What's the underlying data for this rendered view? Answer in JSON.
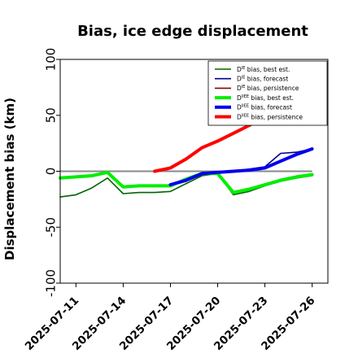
{
  "chart_data": {
    "type": "line",
    "title": "Bias, ice edge displacement",
    "xlabel": "",
    "ylabel": "Displacement bias (km)",
    "ylim": [
      -100,
      100
    ],
    "xlim": [
      "2025-07-10",
      "2025-07-27"
    ],
    "yticks": [
      -100,
      -50,
      0,
      50,
      100
    ],
    "yticklabels": [
      "-100",
      "-50",
      "0",
      "50",
      "100"
    ],
    "xticks": [
      "2025-07-11",
      "2025-07-14",
      "2025-07-17",
      "2025-07-20",
      "2025-07-23",
      "2025-07-26"
    ],
    "highlight_tick": "2025-07-17",
    "highlight_color": "#228b22",
    "zero_line": true,
    "grid": false,
    "legend_placement": "top-right",
    "series": [
      {
        "name": "D^IE bias, best est.",
        "legend_main": "D",
        "legend_sup": "IE",
        "legend_rest": " bias, best est.",
        "color": "#006400",
        "bold": false,
        "points": [
          [
            "2025-07-10",
            -23
          ],
          [
            "2025-07-11",
            -21
          ],
          [
            "2025-07-12",
            -15
          ],
          [
            "2025-07-13",
            -6
          ],
          [
            "2025-07-14",
            -20
          ],
          [
            "2025-07-15",
            -19
          ],
          [
            "2025-07-16",
            -19
          ],
          [
            "2025-07-17",
            -18
          ],
          [
            "2025-07-18",
            -11
          ],
          [
            "2025-07-19",
            -4
          ],
          [
            "2025-07-20",
            -2
          ],
          [
            "2025-07-21",
            -21
          ],
          [
            "2025-07-22",
            -18
          ],
          [
            "2025-07-23",
            -13
          ],
          [
            "2025-07-24",
            -9
          ],
          [
            "2025-07-25",
            -6
          ],
          [
            "2025-07-26",
            -4
          ]
        ]
      },
      {
        "name": "D^IE bias, forecast",
        "legend_main": "D",
        "legend_sup": "IE",
        "legend_rest": " bias, forecast",
        "color": "#00008b",
        "bold": false,
        "points": [
          [
            "2025-07-17",
            -13
          ],
          [
            "2025-07-18",
            -9
          ],
          [
            "2025-07-19",
            -2
          ],
          [
            "2025-07-20",
            -1
          ],
          [
            "2025-07-21",
            0
          ],
          [
            "2025-07-22",
            2
          ],
          [
            "2025-07-23",
            4
          ],
          [
            "2025-07-24",
            16
          ],
          [
            "2025-07-25",
            17
          ],
          [
            "2025-07-26",
            20
          ]
        ]
      },
      {
        "name": "D^IE bias, persistence",
        "legend_main": "D",
        "legend_sup": "IE",
        "legend_rest": " bias, persistence",
        "color": "#8b0000",
        "bold": false,
        "points": [
          [
            "2025-07-16",
            0
          ],
          [
            "2025-07-17",
            3
          ],
          [
            "2025-07-18",
            11
          ],
          [
            "2025-07-19",
            21
          ],
          [
            "2025-07-20",
            27
          ],
          [
            "2025-07-21",
            34
          ],
          [
            "2025-07-22",
            41
          ],
          [
            "2025-07-23",
            48
          ],
          [
            "2025-07-24",
            55
          ]
        ]
      },
      {
        "name": "D^IIEE bias, best est.",
        "legend_main": "D",
        "legend_sup": "IIEE",
        "legend_rest": " bias, best est.",
        "color": "#00ee00",
        "bold": true,
        "points": [
          [
            "2025-07-10",
            -6
          ],
          [
            "2025-07-11",
            -5
          ],
          [
            "2025-07-12",
            -4
          ],
          [
            "2025-07-13",
            -1
          ],
          [
            "2025-07-14",
            -14
          ],
          [
            "2025-07-15",
            -13
          ],
          [
            "2025-07-16",
            -13
          ],
          [
            "2025-07-17",
            -13
          ],
          [
            "2025-07-18",
            -7
          ],
          [
            "2025-07-19",
            -2
          ],
          [
            "2025-07-20",
            -2
          ],
          [
            "2025-07-21",
            -19
          ],
          [
            "2025-07-22",
            -16
          ],
          [
            "2025-07-23",
            -12
          ],
          [
            "2025-07-24",
            -8
          ],
          [
            "2025-07-25",
            -5
          ],
          [
            "2025-07-26",
            -3
          ]
        ]
      },
      {
        "name": "D^IIEE bias, forecast",
        "legend_main": "D",
        "legend_sup": "IIEE",
        "legend_rest": " bias, forecast",
        "color": "#0000ee",
        "bold": true,
        "points": [
          [
            "2025-07-17",
            -12
          ],
          [
            "2025-07-18",
            -8
          ],
          [
            "2025-07-19",
            -2
          ],
          [
            "2025-07-20",
            -1
          ],
          [
            "2025-07-21",
            0
          ],
          [
            "2025-07-22",
            1
          ],
          [
            "2025-07-23",
            3
          ],
          [
            "2025-07-24",
            9
          ],
          [
            "2025-07-25",
            15
          ],
          [
            "2025-07-26",
            20
          ]
        ]
      },
      {
        "name": "D^IIEE bias, persistence",
        "legend_main": "D",
        "legend_sup": "IIEE",
        "legend_rest": " bias, persistence",
        "color": "#ff0000",
        "bold": true,
        "points": [
          [
            "2025-07-16",
            0
          ],
          [
            "2025-07-17",
            3
          ],
          [
            "2025-07-18",
            11
          ],
          [
            "2025-07-19",
            21
          ],
          [
            "2025-07-20",
            27
          ],
          [
            "2025-07-21",
            34
          ],
          [
            "2025-07-22",
            41
          ],
          [
            "2025-07-23",
            48
          ],
          [
            "2025-07-24",
            55
          ]
        ]
      }
    ]
  }
}
